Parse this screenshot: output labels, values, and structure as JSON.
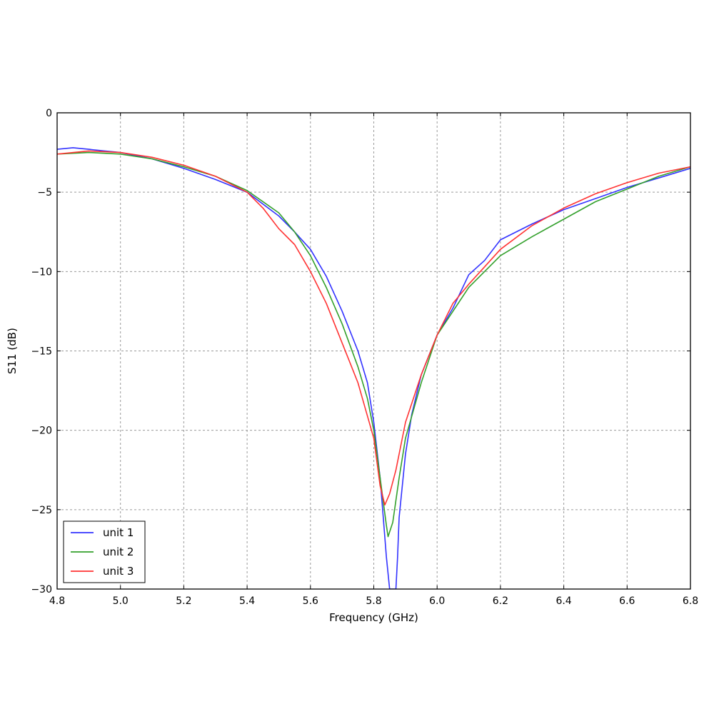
{
  "chart_data": {
    "type": "line",
    "title": "",
    "xlabel": "Frequency (GHz)",
    "ylabel": "S11 (dB)",
    "xlim": [
      4.8,
      6.8
    ],
    "ylim": [
      -30,
      0
    ],
    "xticks": [
      "4.8",
      "5.0",
      "5.2",
      "5.4",
      "5.6",
      "5.8",
      "6.0",
      "6.2",
      "6.4",
      "6.6",
      "6.8"
    ],
    "yticks": [
      "0",
      "−5",
      "−10",
      "−15",
      "−20",
      "−25",
      "−30"
    ],
    "grid": true,
    "legend_position": "lower-left",
    "series": [
      {
        "name": "unit 1",
        "color": "#3333ff",
        "x": [
          4.8,
          4.85,
          4.9,
          4.95,
          5.0,
          5.1,
          5.2,
          5.3,
          5.4,
          5.5,
          5.55,
          5.6,
          5.65,
          5.7,
          5.75,
          5.78,
          5.8,
          5.82,
          5.84,
          5.85,
          5.87,
          5.875,
          5.88,
          5.9,
          5.92,
          5.95,
          6.0,
          6.05,
          6.1,
          6.15,
          6.2,
          6.3,
          6.4,
          6.5,
          6.6,
          6.7,
          6.8
        ],
        "y": [
          -2.3,
          -2.2,
          -2.3,
          -2.4,
          -2.5,
          -2.9,
          -3.5,
          -4.2,
          -5.0,
          -6.5,
          -7.5,
          -8.6,
          -10.3,
          -12.5,
          -15.0,
          -17.0,
          -19.5,
          -23.0,
          -28.0,
          -30.0,
          -30.0,
          -28.0,
          -25.5,
          -21.5,
          -19.0,
          -16.5,
          -14.0,
          -12.3,
          -10.2,
          -9.3,
          -8.0,
          -7.0,
          -6.1,
          -5.4,
          -4.7,
          -4.1,
          -3.5
        ]
      },
      {
        "name": "unit 2",
        "color": "#33a02c",
        "x": [
          4.8,
          4.9,
          5.0,
          5.1,
          5.2,
          5.3,
          5.4,
          5.5,
          5.55,
          5.6,
          5.65,
          5.7,
          5.75,
          5.78,
          5.8,
          5.82,
          5.84,
          5.845,
          5.86,
          5.88,
          5.9,
          5.95,
          6.0,
          6.05,
          6.1,
          6.15,
          6.2,
          6.3,
          6.4,
          6.5,
          6.6,
          6.7,
          6.8
        ],
        "y": [
          -2.6,
          -2.5,
          -2.6,
          -2.9,
          -3.4,
          -4.0,
          -4.9,
          -6.3,
          -7.5,
          -9.0,
          -11.0,
          -13.3,
          -16.0,
          -18.0,
          -20.0,
          -23.0,
          -26.0,
          -26.7,
          -25.8,
          -23.0,
          -20.5,
          -17.0,
          -14.0,
          -12.5,
          -11.0,
          -10.0,
          -9.0,
          -7.8,
          -6.7,
          -5.6,
          -4.8,
          -4.0,
          -3.4
        ]
      },
      {
        "name": "unit 3",
        "color": "#ff3333",
        "x": [
          4.8,
          4.9,
          5.0,
          5.1,
          5.2,
          5.3,
          5.4,
          5.45,
          5.5,
          5.55,
          5.6,
          5.65,
          5.7,
          5.75,
          5.8,
          5.82,
          5.835,
          5.85,
          5.87,
          5.9,
          5.95,
          6.0,
          6.05,
          6.1,
          6.15,
          6.2,
          6.3,
          6.4,
          6.5,
          6.6,
          6.7,
          6.8
        ],
        "y": [
          -2.6,
          -2.4,
          -2.5,
          -2.8,
          -3.3,
          -4.0,
          -5.0,
          -6.0,
          -7.3,
          -8.3,
          -10.0,
          -12.0,
          -14.5,
          -17.0,
          -20.5,
          -23.5,
          -24.7,
          -24.0,
          -22.5,
          -19.5,
          -16.5,
          -14.0,
          -12.0,
          -10.8,
          -9.7,
          -8.6,
          -7.1,
          -6.0,
          -5.1,
          -4.4,
          -3.8,
          -3.4
        ]
      }
    ]
  }
}
